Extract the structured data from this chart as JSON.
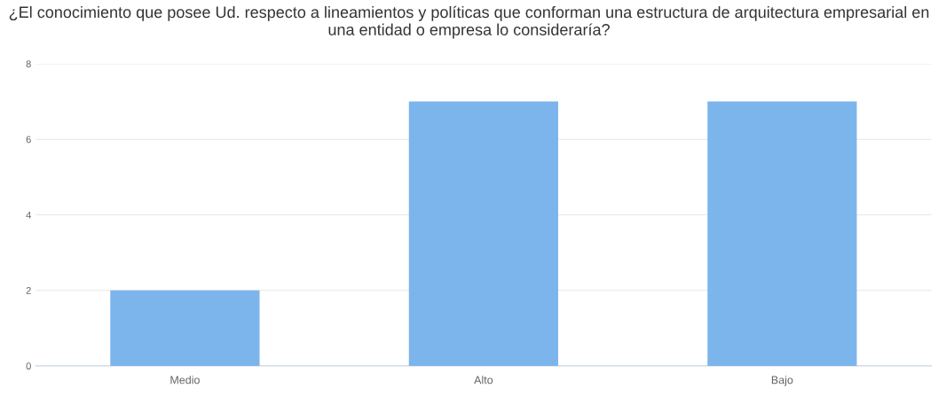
{
  "chart_data": {
    "type": "bar",
    "title": "¿El conocimiento que posee Ud. respecto a lineamientos y políticas que conforman una estructura de arquitectura empresarial en una entidad o empresa lo consideraría?",
    "categories": [
      "Medio",
      "Alto",
      "Bajo"
    ],
    "values": [
      2,
      7,
      7
    ],
    "color": "#7cb5ec",
    "ylim": [
      0,
      8
    ],
    "yticks": [
      0,
      2,
      4,
      6,
      8
    ],
    "grid": "y",
    "legend": false
  }
}
